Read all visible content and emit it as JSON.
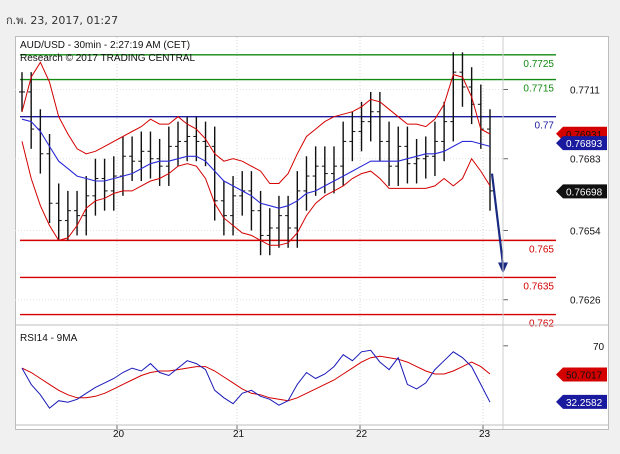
{
  "timestamp": "ก.พ. 23, 2017, 01:27",
  "header": {
    "symbol_line": "AUD/USD - 30min - 2:27:19 AM (CET)",
    "credit_line": "Research © 2017 TRADING CENTRAL"
  },
  "colors": {
    "green_level": "#138a13",
    "blue_level": "#1a1a9e",
    "red_level": "#d40000",
    "bands": "#d40000",
    "moving_average": "#2a2ad6",
    "price_bars": "#111111",
    "arrow": "#1a2a80",
    "rsi": "#1a1ab8",
    "rsi_ma": "#d40000",
    "tag_red": "#d40000",
    "tag_blue": "#1a1a9e",
    "tag_black": "#111111"
  },
  "chart_data": [
    {
      "type": "line",
      "name": "price",
      "ylim": [
        0.7617,
        0.7731
      ],
      "x_tick_labels": [
        "20",
        "21",
        "22",
        "23"
      ],
      "y_tick_labels": [
        "0.7711",
        "0.7683",
        "0.7654",
        "0.7626"
      ],
      "y_tick_values": [
        0.7711,
        0.7683,
        0.7654,
        0.7626
      ],
      "levels": [
        {
          "label": "0.7725",
          "value": 0.7725,
          "color": "green"
        },
        {
          "label": "0.7715",
          "value": 0.7715,
          "color": "green"
        },
        {
          "label": "0.77",
          "value": 0.77,
          "color": "blue"
        },
        {
          "label": "0.765",
          "value": 0.765,
          "color": "red"
        },
        {
          "label": "0.7635",
          "value": 0.7635,
          "color": "red"
        },
        {
          "label": "0.762",
          "value": 0.762,
          "color": "red"
        }
      ],
      "value_tags": [
        {
          "label": "0.76931",
          "value": 0.76931,
          "style": "red"
        },
        {
          "label": "0.76893",
          "value": 0.76893,
          "style": "blue"
        },
        {
          "label": "0.76698",
          "value": 0.76698,
          "style": "black"
        }
      ],
      "close": [
        0.771,
        0.7695,
        0.7685,
        0.7665,
        0.7658,
        0.7662,
        0.766,
        0.7668,
        0.7675,
        0.767,
        0.7676,
        0.7684,
        0.7682,
        0.7686,
        0.7683,
        0.768,
        0.7688,
        0.769,
        0.7692,
        0.769,
        0.7688,
        0.7666,
        0.766,
        0.7668,
        0.767,
        0.7662,
        0.7652,
        0.7655,
        0.766,
        0.7655,
        0.767,
        0.7676,
        0.768,
        0.7677,
        0.768,
        0.769,
        0.7694,
        0.7698,
        0.7702,
        0.769,
        0.768,
        0.7688,
        0.7681,
        0.7683,
        0.7684,
        0.769,
        0.7698,
        0.7718,
        0.7712,
        0.7705,
        0.7695,
        0.767
      ],
      "upper_band": [
        0.7702,
        0.7716,
        0.7722,
        0.7714,
        0.77,
        0.7693,
        0.7687,
        0.7685,
        0.7686,
        0.7688,
        0.769,
        0.7692,
        0.7694,
        0.7696,
        0.7699,
        0.7697,
        0.7697,
        0.77,
        0.7697,
        0.7695,
        0.7691,
        0.7685,
        0.7682,
        0.7683,
        0.7682,
        0.768,
        0.7678,
        0.7673,
        0.7673,
        0.7677,
        0.7685,
        0.7692,
        0.7695,
        0.7698,
        0.77,
        0.7701,
        0.7702,
        0.7704,
        0.7707,
        0.7706,
        0.7703,
        0.77,
        0.7697,
        0.7697,
        0.7696,
        0.7699,
        0.7705,
        0.7717,
        0.7716,
        0.7708,
        0.7695,
        0.7693
      ],
      "lower_band": [
        0.769,
        0.7675,
        0.7664,
        0.7656,
        0.765,
        0.7651,
        0.7656,
        0.7663,
        0.7666,
        0.7667,
        0.7669,
        0.767,
        0.767,
        0.7672,
        0.7674,
        0.7675,
        0.7677,
        0.768,
        0.7681,
        0.768,
        0.7675,
        0.7665,
        0.7659,
        0.7656,
        0.7653,
        0.7652,
        0.765,
        0.7648,
        0.7648,
        0.7649,
        0.7653,
        0.766,
        0.7665,
        0.7668,
        0.767,
        0.7672,
        0.7675,
        0.7677,
        0.7678,
        0.7675,
        0.7671,
        0.7671,
        0.7671,
        0.7671,
        0.7671,
        0.7672,
        0.7675,
        0.7672,
        0.7675,
        0.7683,
        0.7678,
        0.7672
      ],
      "moving_average": [
        0.7699,
        0.7698,
        0.7694,
        0.7688,
        0.7682,
        0.7679,
        0.7676,
        0.7675,
        0.7674,
        0.7674,
        0.7675,
        0.7676,
        0.7677,
        0.7679,
        0.7681,
        0.7682,
        0.7682,
        0.7683,
        0.7684,
        0.7684,
        0.7682,
        0.7678,
        0.7674,
        0.7672,
        0.767,
        0.7668,
        0.7665,
        0.7664,
        0.7663,
        0.7664,
        0.7666,
        0.7669,
        0.767,
        0.7672,
        0.7674,
        0.7676,
        0.7678,
        0.768,
        0.7682,
        0.7682,
        0.7682,
        0.7682,
        0.7683,
        0.7684,
        0.7685,
        0.7685,
        0.7686,
        0.7688,
        0.769,
        0.769,
        0.7689,
        0.7688
      ],
      "forecast_arrow": {
        "from": 0.7677,
        "to": 0.7637
      }
    },
    {
      "type": "line",
      "name": "RSI14 - 9MA",
      "title": "RSI14 - 9MA",
      "ylim": [
        18,
        82
      ],
      "y_tick_labels": [
        "70"
      ],
      "y_tick_values": [
        70
      ],
      "value_tags": [
        {
          "label": "50.7017",
          "value": 50.7017,
          "style": "red"
        },
        {
          "label": "32.2582",
          "value": 32.2582,
          "style": "blue"
        }
      ],
      "rsi": [
        55,
        44,
        37,
        28,
        33,
        32,
        34,
        38,
        42,
        45,
        48,
        52,
        55,
        53,
        58,
        52,
        50,
        55,
        60,
        58,
        54,
        40,
        35,
        31,
        38,
        40,
        36,
        34,
        30,
        33,
        44,
        52,
        48,
        51,
        56,
        64,
        60,
        66,
        67,
        59,
        54,
        62,
        44,
        41,
        45,
        54,
        60,
        66,
        62,
        56,
        44,
        32
      ],
      "rsi_ma": [
        55,
        52,
        48,
        44,
        40,
        37,
        35,
        35,
        36,
        38,
        41,
        44,
        47,
        50,
        52,
        53,
        53,
        54,
        55,
        56,
        56,
        53,
        49,
        45,
        41,
        38,
        37,
        35,
        34,
        33,
        35,
        38,
        41,
        44,
        47,
        51,
        55,
        59,
        62,
        63,
        62,
        61,
        59,
        56,
        53,
        51,
        51,
        53,
        56,
        59,
        56,
        51
      ]
    }
  ]
}
